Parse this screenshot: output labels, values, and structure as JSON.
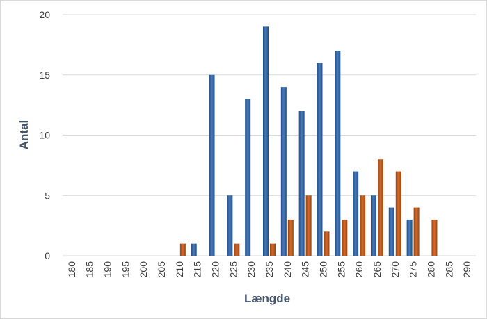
{
  "chart_data": {
    "type": "bar",
    "xlabel": "Længde",
    "ylabel": "Antal",
    "categories": [
      "180",
      "185",
      "190",
      "195",
      "200",
      "205",
      "210",
      "215",
      "220",
      "225",
      "230",
      "235",
      "240",
      "245",
      "250",
      "255",
      "260",
      "265",
      "270",
      "275",
      "280",
      "285",
      "290"
    ],
    "y_ticks": [
      "0",
      "5",
      "10",
      "15",
      "20"
    ],
    "ylim": [
      0,
      20
    ],
    "grid": true,
    "series": [
      {
        "color": "#2e5f9a",
        "values": [
          0,
          0,
          0,
          0,
          0,
          0,
          0,
          1,
          15,
          5,
          13,
          19,
          14,
          12,
          16,
          17,
          7,
          5,
          4,
          3,
          0,
          0,
          0
        ]
      },
      {
        "color": "#b5541b",
        "values": [
          0,
          0,
          0,
          0,
          0,
          0,
          1,
          0,
          0,
          1,
          0,
          1,
          3,
          5,
          2,
          3,
          5,
          8,
          7,
          4,
          3,
          0,
          0
        ]
      }
    ]
  }
}
